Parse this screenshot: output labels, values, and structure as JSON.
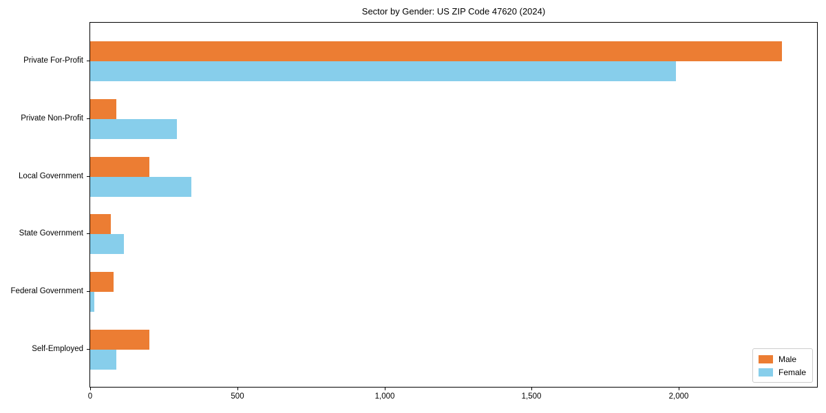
{
  "chart_data": {
    "type": "bar",
    "orientation": "horizontal",
    "title": "Sector by Gender: US ZIP Code 47620 (2024)",
    "xlabel": "",
    "ylabel": "",
    "categories": [
      "Private For-Profit",
      "Private Non-Profit",
      "Local Government",
      "State Government",
      "Federal Government",
      "Self-Employed"
    ],
    "series": [
      {
        "name": "Male",
        "color": "#ec7d33",
        "values": [
          2350,
          90,
          200,
          70,
          80,
          200
        ]
      },
      {
        "name": "Female",
        "color": "#87ceeb",
        "values": [
          1990,
          295,
          345,
          115,
          13,
          90
        ]
      }
    ],
    "xlim": [
      0,
      2470
    ],
    "xticks": [
      0,
      500,
      1000,
      1500,
      2000
    ],
    "xtick_labels": [
      "0",
      "500",
      "1,000",
      "1,500",
      "2,000"
    ],
    "grid": false,
    "legend": {
      "position": "lower right",
      "entries": [
        "Male",
        "Female"
      ]
    }
  }
}
